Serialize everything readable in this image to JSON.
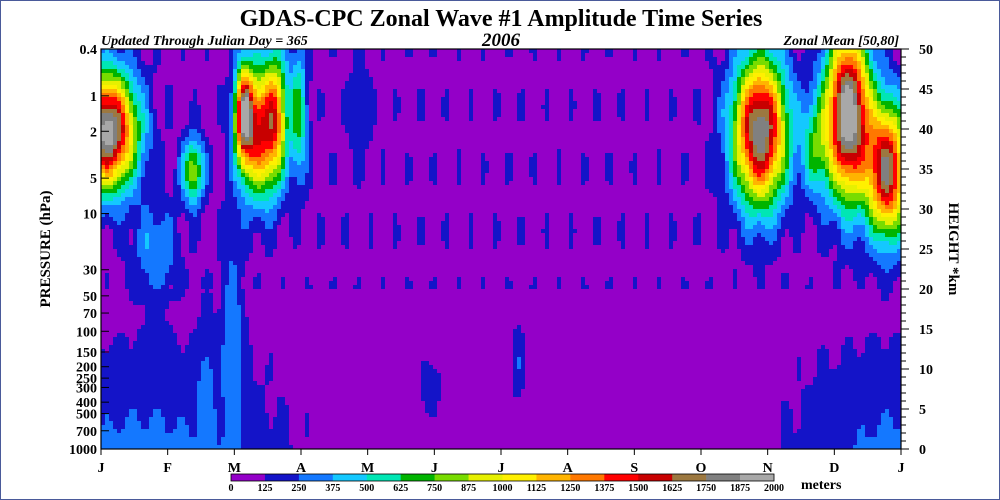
{
  "header": {
    "title": "GDAS-CPC Zonal Wave #1 Amplitude Time Series",
    "updated": "Updated Through Julian Day = 365",
    "year": "2006",
    "zonal_mean": "Zonal Mean [50,80]"
  },
  "chart_data": {
    "type": "heatmap",
    "title": "GDAS-CPC Zonal Wave #1 Amplitude Time Series",
    "subtitle": "2006",
    "xlabel": "",
    "ylabel": "PRESSURE (hPa)",
    "ylabel_right": "HEIGHT *km",
    "x_ticks": [
      "J",
      "F",
      "M",
      "A",
      "M",
      "J",
      "J",
      "A",
      "S",
      "O",
      "N",
      "D",
      "J"
    ],
    "y_ticks_pressure": [
      "0.4",
      "1",
      "2",
      "5",
      "10",
      "30",
      "50",
      "70",
      "100",
      "150",
      "200",
      "250",
      "300",
      "400",
      "500",
      "700",
      "1000"
    ],
    "y_ticks_pressure_values": [
      0.4,
      1,
      2,
      5,
      10,
      30,
      50,
      70,
      100,
      150,
      200,
      250,
      300,
      400,
      500,
      700,
      1000
    ],
    "y_ticks_height": [
      "0",
      "5",
      "10",
      "15",
      "20",
      "25",
      "30",
      "35",
      "40",
      "45",
      "50"
    ],
    "y_ticks_height_values": [
      0,
      5,
      10,
      15,
      20,
      25,
      30,
      35,
      40,
      45,
      50
    ],
    "ylim_height": [
      0,
      50
    ],
    "xlim_days": [
      1,
      365
    ],
    "colorbar": {
      "levels": [
        "0",
        "125",
        "250",
        "375",
        "500",
        "625",
        "750",
        "875",
        "1000",
        "1125",
        "1250",
        "1375",
        "1500",
        "1625",
        "1750",
        "1875",
        "2000"
      ],
      "colors": [
        "#9400c8",
        "#1414c8",
        "#1478ff",
        "#14c8ff",
        "#00e6b4",
        "#00b400",
        "#78dc00",
        "#e6f000",
        "#fff000",
        "#ffb400",
        "#ff7800",
        "#ff0000",
        "#c80000",
        "#9c7840",
        "#808080",
        "#a8a8a8"
      ],
      "units": "meters"
    }
  }
}
